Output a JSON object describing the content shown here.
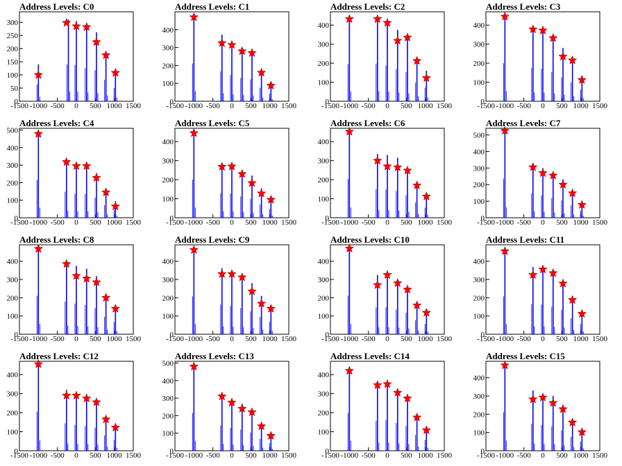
{
  "figure": {
    "xlim": [
      -1500,
      1500
    ],
    "x_ticks": [
      -1500,
      -1000,
      -500,
      0,
      500,
      1000,
      1500
    ],
    "x_tick_labels": [
      "-1500",
      "-1000",
      "-500",
      "0",
      "500",
      "1000",
      "1500"
    ],
    "line_color": "#0000ff",
    "marker_color": "#ff0000",
    "marker": "star"
  },
  "chart_data": [
    {
      "type": "bar",
      "title": "Address Levels: C0",
      "ylim": [
        0,
        340
      ],
      "y_ticks": [
        0,
        50,
        100,
        150,
        200,
        250,
        300
      ],
      "y_tick_labels": [
        "0",
        "50",
        "100",
        "150",
        "200",
        "250",
        "300"
      ],
      "bars": [
        {
          "x": -1000,
          "y": 140
        },
        {
          "x": -210,
          "y": 310
        },
        {
          "x": 0,
          "y": 305
        },
        {
          "x": 270,
          "y": 280
        },
        {
          "x": 530,
          "y": 262
        },
        {
          "x": 780,
          "y": 182
        },
        {
          "x": 1030,
          "y": 112
        }
      ],
      "peaks": [
        {
          "x": -1000,
          "y": 100
        },
        {
          "x": -260,
          "y": 298
        },
        {
          "x": 0,
          "y": 285
        },
        {
          "x": 270,
          "y": 282
        },
        {
          "x": 530,
          "y": 225
        },
        {
          "x": 780,
          "y": 175
        },
        {
          "x": 1030,
          "y": 108
        }
      ]
    },
    {
      "type": "bar",
      "title": "Address Levels: C1",
      "ylim": [
        0,
        500
      ],
      "y_ticks": [
        0,
        100,
        200,
        300,
        400
      ],
      "y_tick_labels": [
        "0",
        "100",
        "200",
        "300",
        "400"
      ],
      "bars": [
        {
          "x": -1000,
          "y": 470
        },
        {
          "x": -260,
          "y": 372
        },
        {
          "x": 0,
          "y": 325
        },
        {
          "x": 270,
          "y": 290
        },
        {
          "x": 530,
          "y": 272
        },
        {
          "x": 780,
          "y": 168
        },
        {
          "x": 1030,
          "y": 95
        }
      ],
      "peaks": [
        {
          "x": -1000,
          "y": 470
        },
        {
          "x": -260,
          "y": 325
        },
        {
          "x": 0,
          "y": 315
        },
        {
          "x": 270,
          "y": 280
        },
        {
          "x": 530,
          "y": 270
        },
        {
          "x": 780,
          "y": 160
        },
        {
          "x": 1030,
          "y": 88
        }
      ]
    },
    {
      "type": "bar",
      "title": "Address Levels: C2",
      "ylim": [
        0,
        470
      ],
      "y_ticks": [
        0,
        100,
        200,
        300,
        400
      ],
      "y_tick_labels": [
        "0",
        "100",
        "200",
        "300",
        "400"
      ],
      "bars": [
        {
          "x": -1000,
          "y": 432
        },
        {
          "x": -260,
          "y": 440
        },
        {
          "x": 0,
          "y": 420
        },
        {
          "x": 270,
          "y": 375
        },
        {
          "x": 530,
          "y": 340
        },
        {
          "x": 780,
          "y": 218
        },
        {
          "x": 1030,
          "y": 160
        }
      ],
      "peaks": [
        {
          "x": -1000,
          "y": 432
        },
        {
          "x": -260,
          "y": 432
        },
        {
          "x": 0,
          "y": 412
        },
        {
          "x": 270,
          "y": 318
        },
        {
          "x": 530,
          "y": 335
        },
        {
          "x": 780,
          "y": 212
        },
        {
          "x": 1030,
          "y": 122
        }
      ]
    },
    {
      "type": "bar",
      "title": "Address Levels: C3",
      "ylim": [
        0,
        470
      ],
      "y_ticks": [
        0,
        100,
        200,
        300,
        400
      ],
      "y_tick_labels": [
        "0",
        "100",
        "200",
        "300",
        "400"
      ],
      "bars": [
        {
          "x": -1000,
          "y": 445
        },
        {
          "x": -260,
          "y": 388
        },
        {
          "x": 0,
          "y": 380
        },
        {
          "x": 270,
          "y": 340
        },
        {
          "x": 530,
          "y": 280
        },
        {
          "x": 780,
          "y": 222
        },
        {
          "x": 1030,
          "y": 135
        }
      ],
      "peaks": [
        {
          "x": -1000,
          "y": 445
        },
        {
          "x": -260,
          "y": 378
        },
        {
          "x": 0,
          "y": 372
        },
        {
          "x": 270,
          "y": 332
        },
        {
          "x": 530,
          "y": 235
        },
        {
          "x": 780,
          "y": 215
        },
        {
          "x": 1030,
          "y": 112
        }
      ]
    },
    {
      "type": "bar",
      "title": "Address Levels: C4",
      "ylim": [
        0,
        510
      ],
      "y_ticks": [
        0,
        100,
        200,
        300,
        400,
        500
      ],
      "y_tick_labels": [
        "0",
        "100",
        "200",
        "300",
        "400",
        "500"
      ],
      "bars": [
        {
          "x": -1000,
          "y": 478
        },
        {
          "x": -260,
          "y": 330
        },
        {
          "x": 0,
          "y": 305
        },
        {
          "x": 270,
          "y": 302
        },
        {
          "x": 530,
          "y": 255
        },
        {
          "x": 780,
          "y": 160
        },
        {
          "x": 1030,
          "y": 95
        }
      ],
      "peaks": [
        {
          "x": -1000,
          "y": 478
        },
        {
          "x": -260,
          "y": 318
        },
        {
          "x": 0,
          "y": 295
        },
        {
          "x": 270,
          "y": 295
        },
        {
          "x": 530,
          "y": 228
        },
        {
          "x": 780,
          "y": 145
        },
        {
          "x": 1030,
          "y": 65
        }
      ]
    },
    {
      "type": "bar",
      "title": "Address Levels: C5",
      "ylim": [
        0,
        470
      ],
      "y_ticks": [
        0,
        100,
        200,
        300,
        400
      ],
      "y_tick_labels": [
        "0",
        "100",
        "200",
        "300",
        "400"
      ],
      "bars": [
        {
          "x": -1000,
          "y": 445
        },
        {
          "x": -260,
          "y": 288
        },
        {
          "x": 0,
          "y": 282
        },
        {
          "x": 270,
          "y": 250
        },
        {
          "x": 530,
          "y": 222
        },
        {
          "x": 780,
          "y": 155
        },
        {
          "x": 1030,
          "y": 100
        }
      ],
      "peaks": [
        {
          "x": -1000,
          "y": 445
        },
        {
          "x": -260,
          "y": 268
        },
        {
          "x": 0,
          "y": 270
        },
        {
          "x": 270,
          "y": 230
        },
        {
          "x": 530,
          "y": 182
        },
        {
          "x": 780,
          "y": 128
        },
        {
          "x": 1030,
          "y": 95
        }
      ]
    },
    {
      "type": "bar",
      "title": "Address Levels: C6",
      "ylim": [
        0,
        470
      ],
      "y_ticks": [
        0,
        100,
        200,
        300,
        400
      ],
      "y_tick_labels": [
        "0",
        "100",
        "200",
        "300",
        "400"
      ],
      "bars": [
        {
          "x": -1000,
          "y": 452
        },
        {
          "x": -260,
          "y": 335
        },
        {
          "x": 0,
          "y": 330
        },
        {
          "x": 270,
          "y": 315
        },
        {
          "x": 530,
          "y": 262
        },
        {
          "x": 780,
          "y": 178
        },
        {
          "x": 1030,
          "y": 118
        }
      ],
      "peaks": [
        {
          "x": -1000,
          "y": 452
        },
        {
          "x": -260,
          "y": 300
        },
        {
          "x": 0,
          "y": 270
        },
        {
          "x": 270,
          "y": 265
        },
        {
          "x": 530,
          "y": 248
        },
        {
          "x": 780,
          "y": 170
        },
        {
          "x": 1030,
          "y": 112
        }
      ]
    },
    {
      "type": "bar",
      "title": "Address Levels: C7",
      "ylim": [
        0,
        540
      ],
      "y_ticks": [
        0,
        100,
        200,
        300,
        400,
        500
      ],
      "y_tick_labels": [
        "0",
        "100",
        "200",
        "300",
        "400",
        "500"
      ],
      "bars": [
        {
          "x": -1000,
          "y": 525
        },
        {
          "x": -260,
          "y": 330
        },
        {
          "x": 0,
          "y": 300
        },
        {
          "x": 270,
          "y": 265
        },
        {
          "x": 530,
          "y": 232
        },
        {
          "x": 780,
          "y": 165
        },
        {
          "x": 1030,
          "y": 95
        }
      ],
      "peaks": [
        {
          "x": -1000,
          "y": 525
        },
        {
          "x": -260,
          "y": 305
        },
        {
          "x": 0,
          "y": 270
        },
        {
          "x": 270,
          "y": 255
        },
        {
          "x": 530,
          "y": 200
        },
        {
          "x": 780,
          "y": 148
        },
        {
          "x": 1030,
          "y": 78
        }
      ]
    },
    {
      "type": "bar",
      "title": "Address Levels: C8",
      "ylim": [
        0,
        490
      ],
      "y_ticks": [
        0,
        100,
        200,
        300,
        400
      ],
      "y_tick_labels": [
        "0",
        "100",
        "200",
        "300",
        "400"
      ],
      "bars": [
        {
          "x": -1000,
          "y": 468
        },
        {
          "x": -260,
          "y": 398
        },
        {
          "x": 0,
          "y": 375
        },
        {
          "x": 270,
          "y": 358
        },
        {
          "x": 530,
          "y": 318
        },
        {
          "x": 780,
          "y": 212
        },
        {
          "x": 1030,
          "y": 150
        }
      ],
      "peaks": [
        {
          "x": -1000,
          "y": 468
        },
        {
          "x": -260,
          "y": 385
        },
        {
          "x": 0,
          "y": 320
        },
        {
          "x": 270,
          "y": 305
        },
        {
          "x": 530,
          "y": 285
        },
        {
          "x": 780,
          "y": 200
        },
        {
          "x": 1030,
          "y": 140
        }
      ]
    },
    {
      "type": "bar",
      "title": "Address Levels: C9",
      "ylim": [
        0,
        490
      ],
      "y_ticks": [
        0,
        100,
        200,
        300,
        400
      ],
      "y_tick_labels": [
        "0",
        "100",
        "200",
        "300",
        "400"
      ],
      "bars": [
        {
          "x": -1000,
          "y": 462
        },
        {
          "x": -260,
          "y": 362
        },
        {
          "x": 0,
          "y": 345
        },
        {
          "x": 270,
          "y": 318
        },
        {
          "x": 530,
          "y": 280
        },
        {
          "x": 780,
          "y": 210
        },
        {
          "x": 1030,
          "y": 150
        }
      ],
      "peaks": [
        {
          "x": -1000,
          "y": 462
        },
        {
          "x": -260,
          "y": 330
        },
        {
          "x": 0,
          "y": 330
        },
        {
          "x": 270,
          "y": 312
        },
        {
          "x": 530,
          "y": 235
        },
        {
          "x": 780,
          "y": 168
        },
        {
          "x": 1030,
          "y": 140
        }
      ]
    },
    {
      "type": "bar",
      "title": "Address Levels: C10",
      "ylim": [
        0,
        490
      ],
      "y_ticks": [
        0,
        100,
        200,
        300,
        400
      ],
      "y_tick_labels": [
        "0",
        "100",
        "200",
        "300",
        "400"
      ],
      "bars": [
        {
          "x": -1000,
          "y": 470
        },
        {
          "x": -260,
          "y": 325
        },
        {
          "x": 0,
          "y": 330
        },
        {
          "x": 270,
          "y": 300
        },
        {
          "x": 530,
          "y": 262
        },
        {
          "x": 780,
          "y": 170
        },
        {
          "x": 1030,
          "y": 125
        }
      ],
      "peaks": [
        {
          "x": -1000,
          "y": 470
        },
        {
          "x": -260,
          "y": 270
        },
        {
          "x": 0,
          "y": 325
        },
        {
          "x": 270,
          "y": 280
        },
        {
          "x": 530,
          "y": 245
        },
        {
          "x": 780,
          "y": 158
        },
        {
          "x": 1030,
          "y": 118
        }
      ]
    },
    {
      "type": "bar",
      "title": "Address Levels: C11",
      "ylim": [
        0,
        490
      ],
      "y_ticks": [
        0,
        100,
        200,
        300,
        400
      ],
      "y_tick_labels": [
        "0",
        "100",
        "200",
        "300",
        "400"
      ],
      "bars": [
        {
          "x": -1000,
          "y": 460
        },
        {
          "x": -260,
          "y": 368
        },
        {
          "x": 0,
          "y": 362
        },
        {
          "x": 270,
          "y": 335
        },
        {
          "x": 530,
          "y": 298
        },
        {
          "x": 780,
          "y": 195
        },
        {
          "x": 1030,
          "y": 125
        }
      ],
      "peaks": [
        {
          "x": -1000,
          "y": 455
        },
        {
          "x": -260,
          "y": 325
        },
        {
          "x": 0,
          "y": 355
        },
        {
          "x": 270,
          "y": 335
        },
        {
          "x": 530,
          "y": 278
        },
        {
          "x": 780,
          "y": 188
        },
        {
          "x": 1030,
          "y": 112
        }
      ]
    },
    {
      "type": "bar",
      "title": "Address Levels: C12",
      "ylim": [
        0,
        470
      ],
      "y_ticks": [
        0,
        100,
        200,
        300,
        400
      ],
      "y_tick_labels": [
        "0",
        "100",
        "200",
        "300",
        "400"
      ],
      "bars": [
        {
          "x": -1000,
          "y": 455
        },
        {
          "x": -260,
          "y": 320
        },
        {
          "x": 0,
          "y": 300
        },
        {
          "x": 270,
          "y": 290
        },
        {
          "x": 530,
          "y": 268
        },
        {
          "x": 780,
          "y": 178
        },
        {
          "x": 1030,
          "y": 128
        }
      ],
      "peaks": [
        {
          "x": -1000,
          "y": 455
        },
        {
          "x": -260,
          "y": 290
        },
        {
          "x": 0,
          "y": 290
        },
        {
          "x": 270,
          "y": 275
        },
        {
          "x": 530,
          "y": 255
        },
        {
          "x": 780,
          "y": 165
        },
        {
          "x": 1030,
          "y": 122
        }
      ]
    },
    {
      "type": "bar",
      "title": "Address Levels: C13",
      "ylim": [
        0,
        510
      ],
      "y_ticks": [
        0,
        100,
        200,
        300,
        400,
        500
      ],
      "y_tick_labels": [
        "0",
        "100",
        "200",
        "300",
        "400",
        "500"
      ],
      "bars": [
        {
          "x": -1000,
          "y": 480
        },
        {
          "x": -260,
          "y": 320
        },
        {
          "x": 0,
          "y": 290
        },
        {
          "x": 270,
          "y": 268
        },
        {
          "x": 530,
          "y": 230
        },
        {
          "x": 780,
          "y": 150
        },
        {
          "x": 1030,
          "y": 95
        }
      ],
      "peaks": [
        {
          "x": -1000,
          "y": 480
        },
        {
          "x": -260,
          "y": 310
        },
        {
          "x": 0,
          "y": 275
        },
        {
          "x": 270,
          "y": 240
        },
        {
          "x": 530,
          "y": 220
        },
        {
          "x": 780,
          "y": 140
        },
        {
          "x": 1030,
          "y": 85
        }
      ]
    },
    {
      "type": "bar",
      "title": "Address Levels: C14",
      "ylim": [
        0,
        470
      ],
      "y_ticks": [
        0,
        100,
        200,
        300,
        400
      ],
      "y_tick_labels": [
        "0",
        "100",
        "200",
        "300",
        "400"
      ],
      "bars": [
        {
          "x": -1000,
          "y": 442
        },
        {
          "x": -260,
          "y": 350
        },
        {
          "x": 0,
          "y": 358
        },
        {
          "x": 270,
          "y": 325
        },
        {
          "x": 530,
          "y": 290
        },
        {
          "x": 780,
          "y": 185
        },
        {
          "x": 1030,
          "y": 128
        }
      ],
      "peaks": [
        {
          "x": -1000,
          "y": 420
        },
        {
          "x": -260,
          "y": 345
        },
        {
          "x": 0,
          "y": 350
        },
        {
          "x": 270,
          "y": 305
        },
        {
          "x": 530,
          "y": 275
        },
        {
          "x": 780,
          "y": 175
        },
        {
          "x": 1030,
          "y": 108
        }
      ]
    },
    {
      "type": "bar",
      "title": "Address Levels: C15",
      "ylim": [
        0,
        490
      ],
      "y_ticks": [
        0,
        100,
        200,
        300,
        400
      ],
      "y_tick_labels": [
        "0",
        "100",
        "200",
        "300",
        "400"
      ],
      "bars": [
        {
          "x": -1000,
          "y": 468
        },
        {
          "x": -260,
          "y": 330
        },
        {
          "x": 0,
          "y": 312
        },
        {
          "x": 270,
          "y": 300
        },
        {
          "x": 530,
          "y": 248
        },
        {
          "x": 780,
          "y": 168
        },
        {
          "x": 1030,
          "y": 110
        }
      ],
      "peaks": [
        {
          "x": -1000,
          "y": 468
        },
        {
          "x": -260,
          "y": 282
        },
        {
          "x": 0,
          "y": 292
        },
        {
          "x": 270,
          "y": 262
        },
        {
          "x": 530,
          "y": 228
        },
        {
          "x": 780,
          "y": 155
        },
        {
          "x": 1030,
          "y": 102
        }
      ]
    }
  ]
}
